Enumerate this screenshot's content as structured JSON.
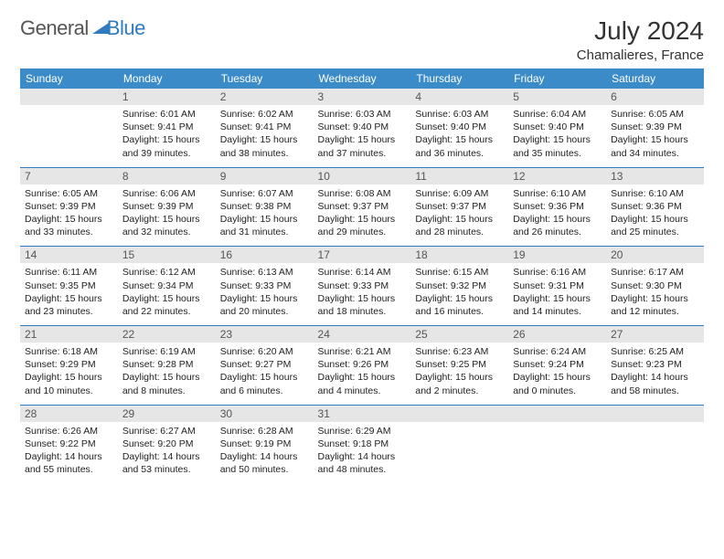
{
  "logo": {
    "part1": "General",
    "part2": "Blue"
  },
  "title": "July 2024",
  "subtitle": "Chamalieres, France",
  "colors": {
    "header_bg": "#3b8bc8",
    "header_text": "#ffffff",
    "daynum_bg": "#e6e6e6",
    "rule": "#2e7bc0",
    "logo_gray": "#555555",
    "logo_blue": "#2e7bc0"
  },
  "day_headers": [
    "Sunday",
    "Monday",
    "Tuesday",
    "Wednesday",
    "Thursday",
    "Friday",
    "Saturday"
  ],
  "weeks": [
    {
      "nums": [
        "",
        "1",
        "2",
        "3",
        "4",
        "5",
        "6"
      ],
      "cells": [
        null,
        {
          "sr": "Sunrise: 6:01 AM",
          "ss": "Sunset: 9:41 PM",
          "d1": "Daylight: 15 hours",
          "d2": "and 39 minutes."
        },
        {
          "sr": "Sunrise: 6:02 AM",
          "ss": "Sunset: 9:41 PM",
          "d1": "Daylight: 15 hours",
          "d2": "and 38 minutes."
        },
        {
          "sr": "Sunrise: 6:03 AM",
          "ss": "Sunset: 9:40 PM",
          "d1": "Daylight: 15 hours",
          "d2": "and 37 minutes."
        },
        {
          "sr": "Sunrise: 6:03 AM",
          "ss": "Sunset: 9:40 PM",
          "d1": "Daylight: 15 hours",
          "d2": "and 36 minutes."
        },
        {
          "sr": "Sunrise: 6:04 AM",
          "ss": "Sunset: 9:40 PM",
          "d1": "Daylight: 15 hours",
          "d2": "and 35 minutes."
        },
        {
          "sr": "Sunrise: 6:05 AM",
          "ss": "Sunset: 9:39 PM",
          "d1": "Daylight: 15 hours",
          "d2": "and 34 minutes."
        }
      ]
    },
    {
      "nums": [
        "7",
        "8",
        "9",
        "10",
        "11",
        "12",
        "13"
      ],
      "cells": [
        {
          "sr": "Sunrise: 6:05 AM",
          "ss": "Sunset: 9:39 PM",
          "d1": "Daylight: 15 hours",
          "d2": "and 33 minutes."
        },
        {
          "sr": "Sunrise: 6:06 AM",
          "ss": "Sunset: 9:39 PM",
          "d1": "Daylight: 15 hours",
          "d2": "and 32 minutes."
        },
        {
          "sr": "Sunrise: 6:07 AM",
          "ss": "Sunset: 9:38 PM",
          "d1": "Daylight: 15 hours",
          "d2": "and 31 minutes."
        },
        {
          "sr": "Sunrise: 6:08 AM",
          "ss": "Sunset: 9:37 PM",
          "d1": "Daylight: 15 hours",
          "d2": "and 29 minutes."
        },
        {
          "sr": "Sunrise: 6:09 AM",
          "ss": "Sunset: 9:37 PM",
          "d1": "Daylight: 15 hours",
          "d2": "and 28 minutes."
        },
        {
          "sr": "Sunrise: 6:10 AM",
          "ss": "Sunset: 9:36 PM",
          "d1": "Daylight: 15 hours",
          "d2": "and 26 minutes."
        },
        {
          "sr": "Sunrise: 6:10 AM",
          "ss": "Sunset: 9:36 PM",
          "d1": "Daylight: 15 hours",
          "d2": "and 25 minutes."
        }
      ]
    },
    {
      "nums": [
        "14",
        "15",
        "16",
        "17",
        "18",
        "19",
        "20"
      ],
      "cells": [
        {
          "sr": "Sunrise: 6:11 AM",
          "ss": "Sunset: 9:35 PM",
          "d1": "Daylight: 15 hours",
          "d2": "and 23 minutes."
        },
        {
          "sr": "Sunrise: 6:12 AM",
          "ss": "Sunset: 9:34 PM",
          "d1": "Daylight: 15 hours",
          "d2": "and 22 minutes."
        },
        {
          "sr": "Sunrise: 6:13 AM",
          "ss": "Sunset: 9:33 PM",
          "d1": "Daylight: 15 hours",
          "d2": "and 20 minutes."
        },
        {
          "sr": "Sunrise: 6:14 AM",
          "ss": "Sunset: 9:33 PM",
          "d1": "Daylight: 15 hours",
          "d2": "and 18 minutes."
        },
        {
          "sr": "Sunrise: 6:15 AM",
          "ss": "Sunset: 9:32 PM",
          "d1": "Daylight: 15 hours",
          "d2": "and 16 minutes."
        },
        {
          "sr": "Sunrise: 6:16 AM",
          "ss": "Sunset: 9:31 PM",
          "d1": "Daylight: 15 hours",
          "d2": "and 14 minutes."
        },
        {
          "sr": "Sunrise: 6:17 AM",
          "ss": "Sunset: 9:30 PM",
          "d1": "Daylight: 15 hours",
          "d2": "and 12 minutes."
        }
      ]
    },
    {
      "nums": [
        "21",
        "22",
        "23",
        "24",
        "25",
        "26",
        "27"
      ],
      "cells": [
        {
          "sr": "Sunrise: 6:18 AM",
          "ss": "Sunset: 9:29 PM",
          "d1": "Daylight: 15 hours",
          "d2": "and 10 minutes."
        },
        {
          "sr": "Sunrise: 6:19 AM",
          "ss": "Sunset: 9:28 PM",
          "d1": "Daylight: 15 hours",
          "d2": "and 8 minutes."
        },
        {
          "sr": "Sunrise: 6:20 AM",
          "ss": "Sunset: 9:27 PM",
          "d1": "Daylight: 15 hours",
          "d2": "and 6 minutes."
        },
        {
          "sr": "Sunrise: 6:21 AM",
          "ss": "Sunset: 9:26 PM",
          "d1": "Daylight: 15 hours",
          "d2": "and 4 minutes."
        },
        {
          "sr": "Sunrise: 6:23 AM",
          "ss": "Sunset: 9:25 PM",
          "d1": "Daylight: 15 hours",
          "d2": "and 2 minutes."
        },
        {
          "sr": "Sunrise: 6:24 AM",
          "ss": "Sunset: 9:24 PM",
          "d1": "Daylight: 15 hours",
          "d2": "and 0 minutes."
        },
        {
          "sr": "Sunrise: 6:25 AM",
          "ss": "Sunset: 9:23 PM",
          "d1": "Daylight: 14 hours",
          "d2": "and 58 minutes."
        }
      ]
    },
    {
      "nums": [
        "28",
        "29",
        "30",
        "31",
        "",
        "",
        ""
      ],
      "cells": [
        {
          "sr": "Sunrise: 6:26 AM",
          "ss": "Sunset: 9:22 PM",
          "d1": "Daylight: 14 hours",
          "d2": "and 55 minutes."
        },
        {
          "sr": "Sunrise: 6:27 AM",
          "ss": "Sunset: 9:20 PM",
          "d1": "Daylight: 14 hours",
          "d2": "and 53 minutes."
        },
        {
          "sr": "Sunrise: 6:28 AM",
          "ss": "Sunset: 9:19 PM",
          "d1": "Daylight: 14 hours",
          "d2": "and 50 minutes."
        },
        {
          "sr": "Sunrise: 6:29 AM",
          "ss": "Sunset: 9:18 PM",
          "d1": "Daylight: 14 hours",
          "d2": "and 48 minutes."
        },
        null,
        null,
        null
      ]
    }
  ]
}
